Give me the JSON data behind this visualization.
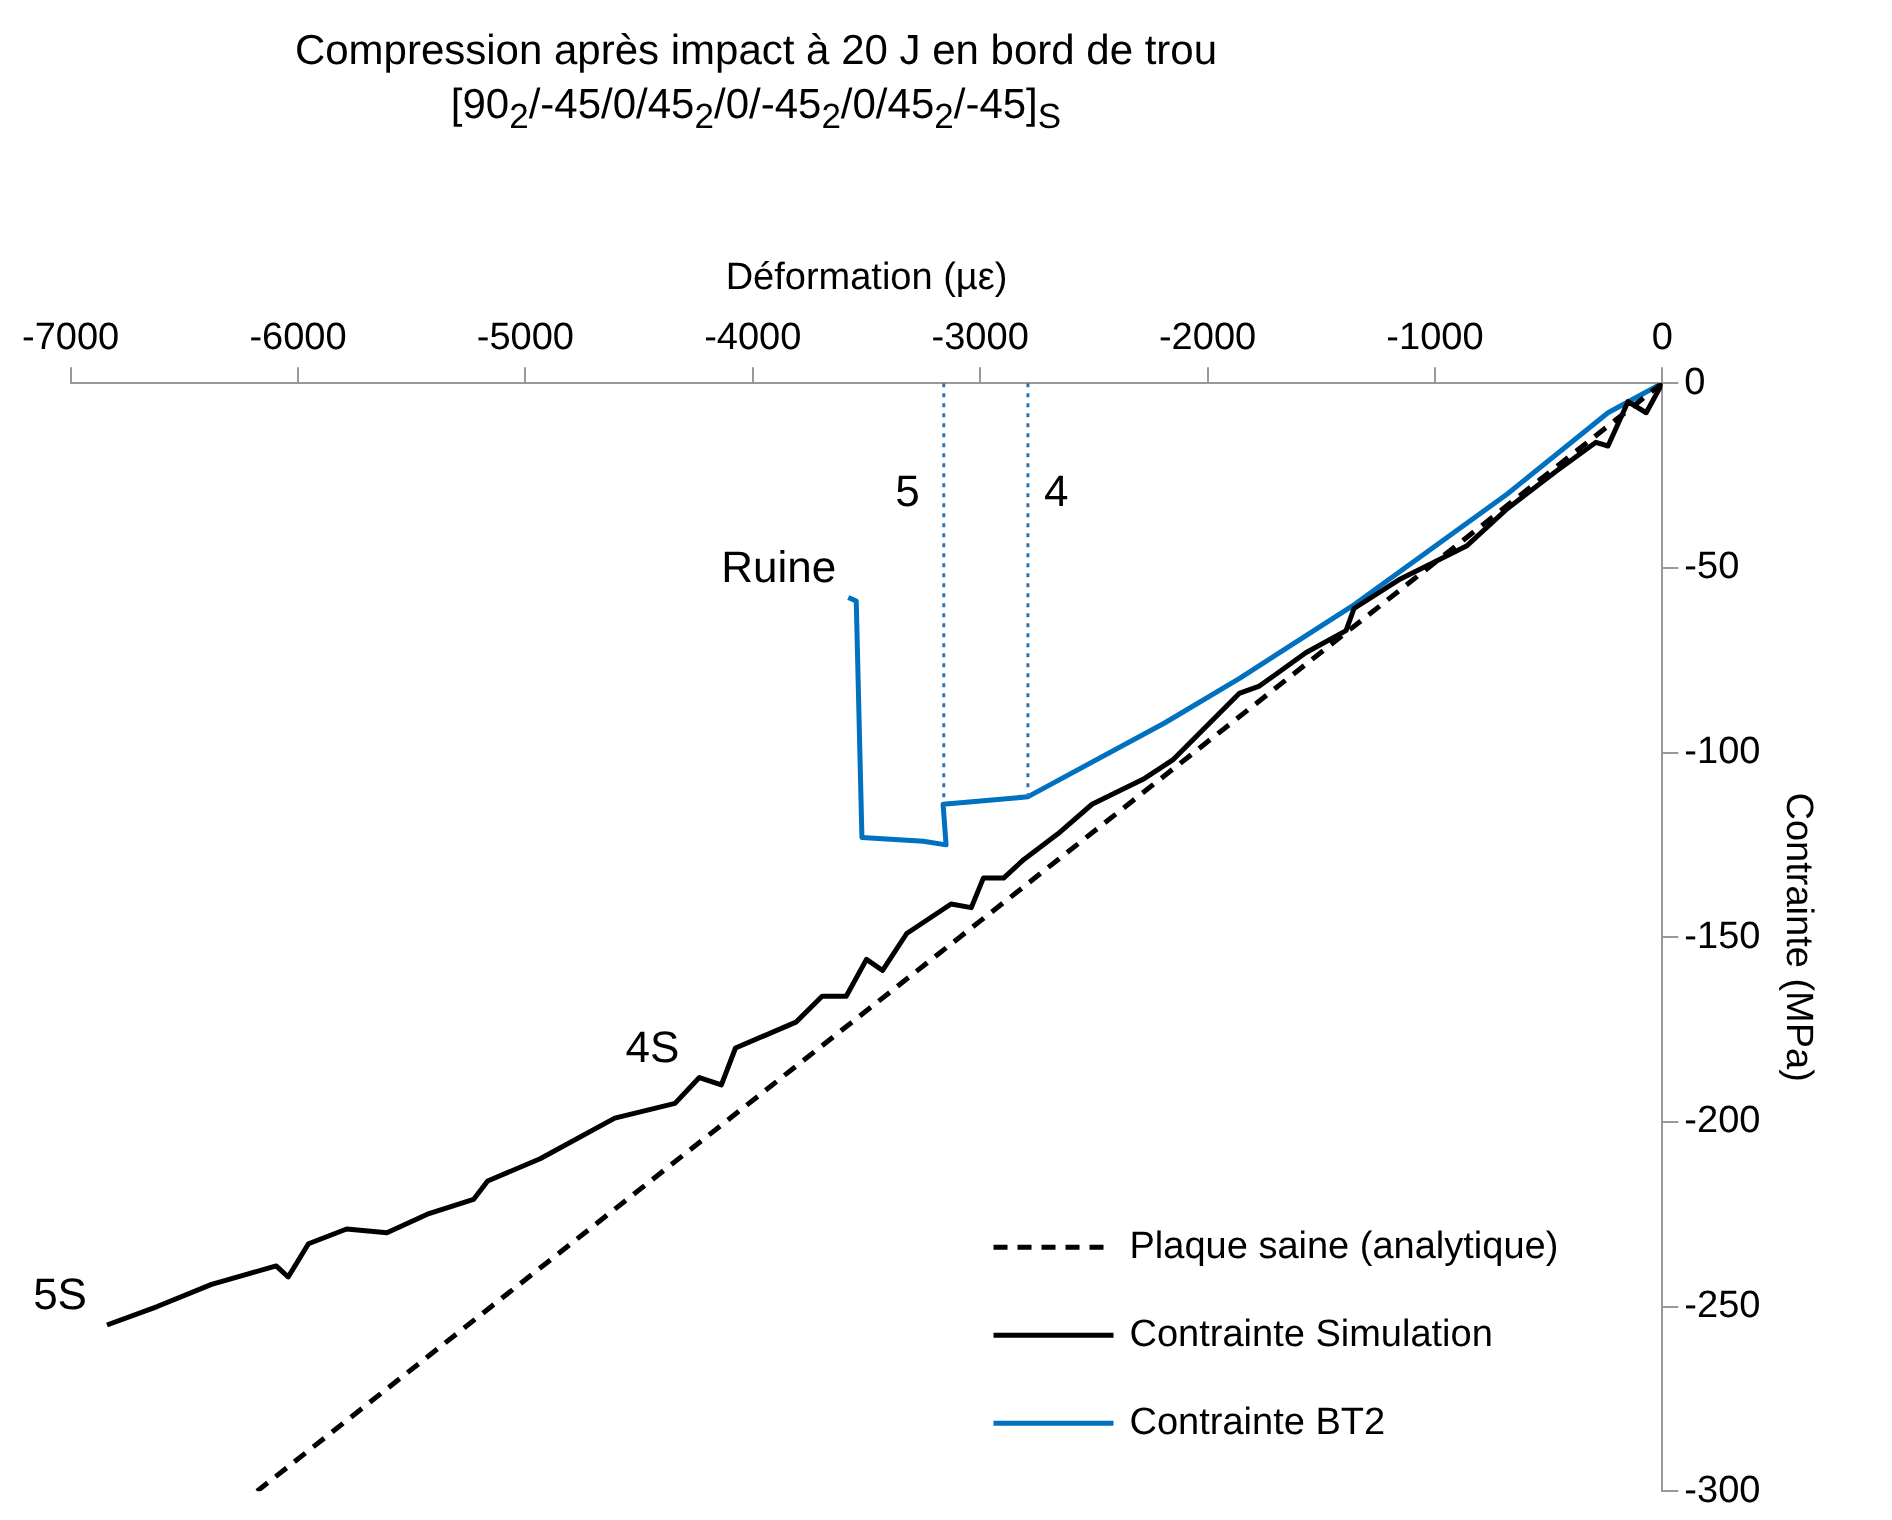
{
  "chart_data": {
    "type": "line",
    "title": "Compression après impact à 20 J en bord de trou",
    "subtitle": "[90$_{2}$/-45/0/45$_{2}$/0/-45$_{2}$/0/45$_{2}$/-45]$_{S}$",
    "xlabel": "Déformation (µε)",
    "ylabel": "Contrainte (MPa)",
    "xlim": [
      -7000,
      0
    ],
    "xticks": [
      -7000,
      -6000,
      -5000,
      -4000,
      -3000,
      -2000,
      -1000,
      0
    ],
    "ylim": [
      -300,
      0
    ],
    "yticks": [
      -300,
      -250,
      -200,
      -150,
      -100,
      -50,
      0
    ],
    "grid": false,
    "legend": "bottom right",
    "marker": "none",
    "series": [
      {
        "name": "Plaque saine (analytique)",
        "type": "line",
        "color": "#000000",
        "line_style": "dashed",
        "x": [
          0,
          -6180
        ],
        "values": [
          0,
          -300
        ]
      },
      {
        "name": "Contrainte Simulation",
        "type": "line",
        "color": "#000000",
        "line_style": "solid",
        "x": [
          0,
          -71,
          -151,
          -239,
          -292,
          -470,
          -682,
          -859,
          -1152,
          -1356,
          -1391,
          -1568,
          -1772,
          -1861,
          -2153,
          -2277,
          -2508,
          -2658,
          -2809,
          -2897,
          -2986,
          -3039,
          -3128,
          -3323,
          -3429,
          -3500,
          -3589,
          -3695,
          -3810,
          -4076,
          -4138,
          -4235,
          -4342,
          -4607,
          -4935,
          -5166,
          -5228,
          -5431,
          -5609,
          -5786,
          -5954,
          -6043,
          -6096,
          -6380,
          -6619,
          -6840
        ],
        "values": [
          0,
          -8,
          -5,
          -17,
          -16,
          -24,
          -34,
          -44,
          -53,
          -61,
          -67,
          -73,
          -82,
          -84,
          -102,
          -107,
          -114,
          -122,
          -129,
          -134,
          -134,
          -142,
          -141,
          -149,
          -159,
          -156,
          -166,
          -166,
          -173,
          -180,
          -190,
          -188,
          -195,
          -199,
          -210,
          -216,
          -221,
          -225,
          -230,
          -229,
          -233,
          -242,
          -239,
          -244,
          -250,
          -255
        ]
      },
      {
        "name": "Contrainte BT2",
        "type": "line",
        "color": "#0070c0",
        "line_style": "solid",
        "x": [
          0,
          -239,
          -682,
          -1356,
          -1861,
          -2189,
          -2791,
          -3163,
          -3150,
          -3250,
          -3520,
          -3545,
          -3580
        ],
        "values": [
          0,
          -8,
          -30,
          -60,
          -80,
          -92,
          -112,
          -114,
          -125,
          -124,
          -123,
          -59,
          -58
        ]
      }
    ],
    "ref_lines": [
      {
        "axis": "x",
        "value": -3160,
        "color": "#2e75b6",
        "line_style": "dotted"
      },
      {
        "axis": "x",
        "value": -2790,
        "color": "#2e75b6",
        "line_style": "dotted"
      }
    ],
    "annotations": [
      {
        "text": "Ruine",
        "x": -3545,
        "y": -58
      },
      {
        "text": "5",
        "x": -3160,
        "y": -30
      },
      {
        "text": "4",
        "x": -2790,
        "y": -30
      },
      {
        "text": "4S",
        "x": -4235,
        "y": -188
      },
      {
        "text": "5S",
        "x": -6840,
        "y": -255
      }
    ]
  }
}
